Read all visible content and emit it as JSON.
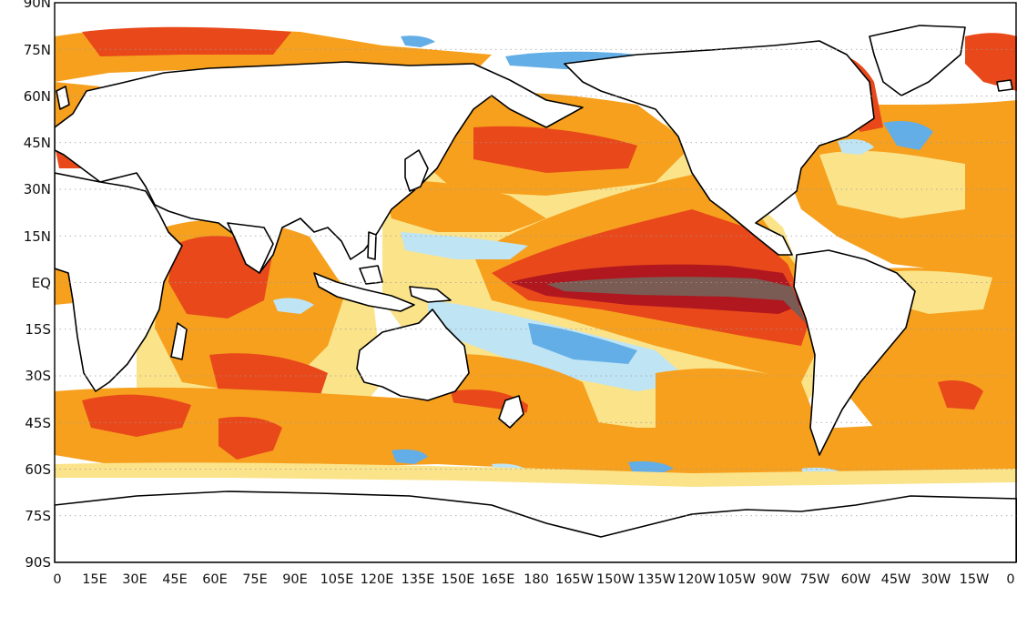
{
  "map": {
    "projection": "equirectangular (plate carree), 0–360 longitude",
    "grid": "dotted",
    "lat_labels": [
      "90N",
      "75N",
      "60N",
      "45N",
      "30N",
      "15N",
      "EQ",
      "15S",
      "30S",
      "45S",
      "60S",
      "75S",
      "90S"
    ],
    "lon_labels": [
      "0",
      "15E",
      "30E",
      "45E",
      "60E",
      "75E",
      "90E",
      "105E",
      "120E",
      "135E",
      "150E",
      "165E",
      "180",
      "165W",
      "150W",
      "135W",
      "120W",
      "105W",
      "90W",
      "75W",
      "60W",
      "45W",
      "30W",
      "15W",
      "0"
    ],
    "colors": {
      "strong_warm": "#7a5c55",
      "very_warm": "#b0171f",
      "warm": "#e8481a",
      "moderate_warm": "#f6a01e",
      "slight_warm": "#fbe38a",
      "slight_cool": "#bfe4f4",
      "cool": "#63aee6",
      "land": "#ffffff",
      "coast": "#000000"
    }
  }
}
